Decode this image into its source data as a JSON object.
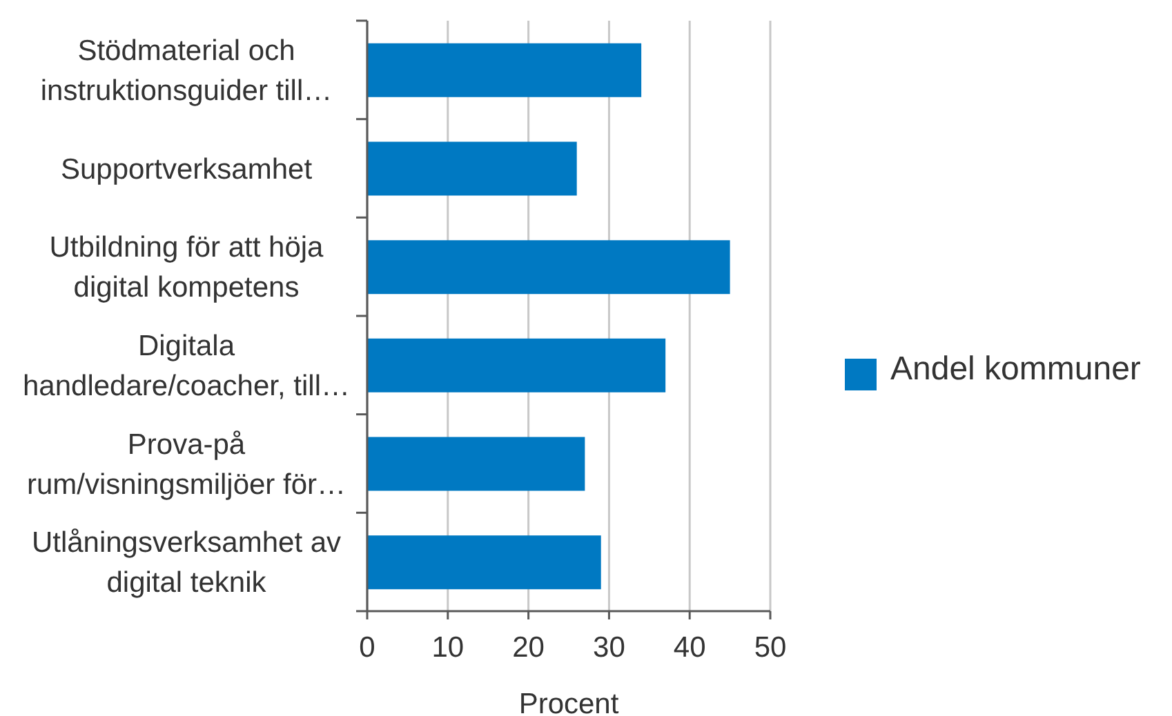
{
  "chart_data": {
    "type": "bar",
    "orientation": "horizontal",
    "categories": [
      "Stödmaterial och instruktionsguider till…",
      "Supportverksamhet",
      "Utbildning för att höja digital kompetens",
      "Digitala handledare/coacher, till…",
      "Prova-på rum/visningsmiljöer för…",
      "Utlåningsverksamhet av digital teknik"
    ],
    "series": [
      {
        "name": "Andel kommuner",
        "color": "#0079c2",
        "values": [
          34,
          26,
          45,
          37,
          27,
          29
        ]
      }
    ],
    "xlabel": "Procent",
    "xlim": [
      0,
      50
    ],
    "xticks": [
      0,
      10,
      20,
      30,
      40,
      50
    ],
    "grid": "x",
    "legend": "right"
  }
}
